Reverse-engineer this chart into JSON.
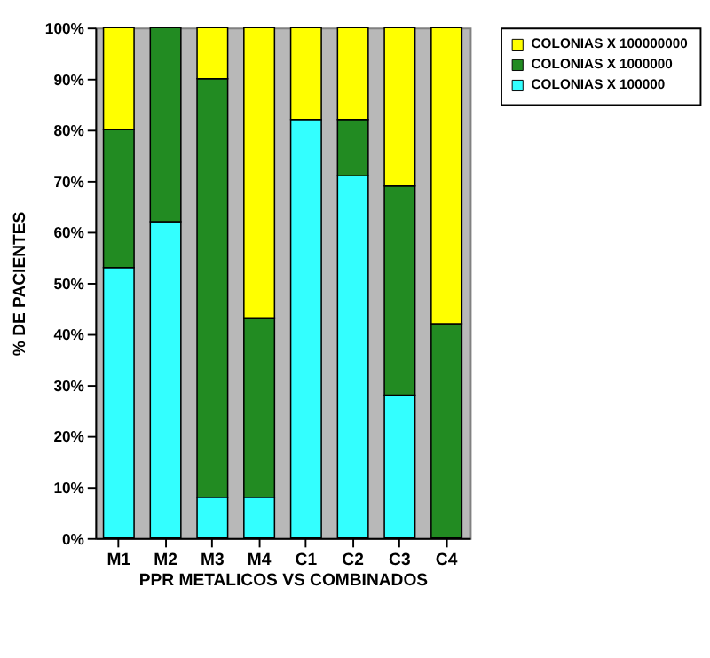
{
  "chart_data": {
    "type": "bar",
    "stacked": true,
    "xlabel": "PPR METALICOS VS COMBINADOS",
    "ylabel": "% DE PACIENTES",
    "categories": [
      "M1",
      "M2",
      "M3",
      "M4",
      "C1",
      "C2",
      "C3",
      "C4"
    ],
    "series": [
      {
        "name": "COLONIAS X 100000",
        "color": "#33ffff",
        "values": [
          53,
          62,
          8,
          8,
          82,
          71,
          28,
          0
        ]
      },
      {
        "name": "COLONIAS X 1000000",
        "color": "#228b22",
        "values": [
          27,
          38,
          82,
          35,
          0,
          11,
          41,
          42
        ]
      },
      {
        "name": "COLONIAS X 100000000",
        "color": "#ffff00",
        "values": [
          20,
          0,
          10,
          57,
          18,
          18,
          31,
          58
        ]
      }
    ],
    "ylim": [
      0,
      100
    ],
    "yticks": [
      {
        "value": 0,
        "label": "0%"
      },
      {
        "value": 10,
        "label": "10%"
      },
      {
        "value": 20,
        "label": "20%"
      },
      {
        "value": 30,
        "label": "30%"
      },
      {
        "value": 40,
        "label": "40%"
      },
      {
        "value": 50,
        "label": "50%"
      },
      {
        "value": 60,
        "label": "60%"
      },
      {
        "value": 70,
        "label": "70%"
      },
      {
        "value": 80,
        "label": "80%"
      },
      {
        "value": 90,
        "label": "90%"
      },
      {
        "value": 100,
        "label": "100%"
      }
    ],
    "grid": false,
    "legend": "right"
  }
}
